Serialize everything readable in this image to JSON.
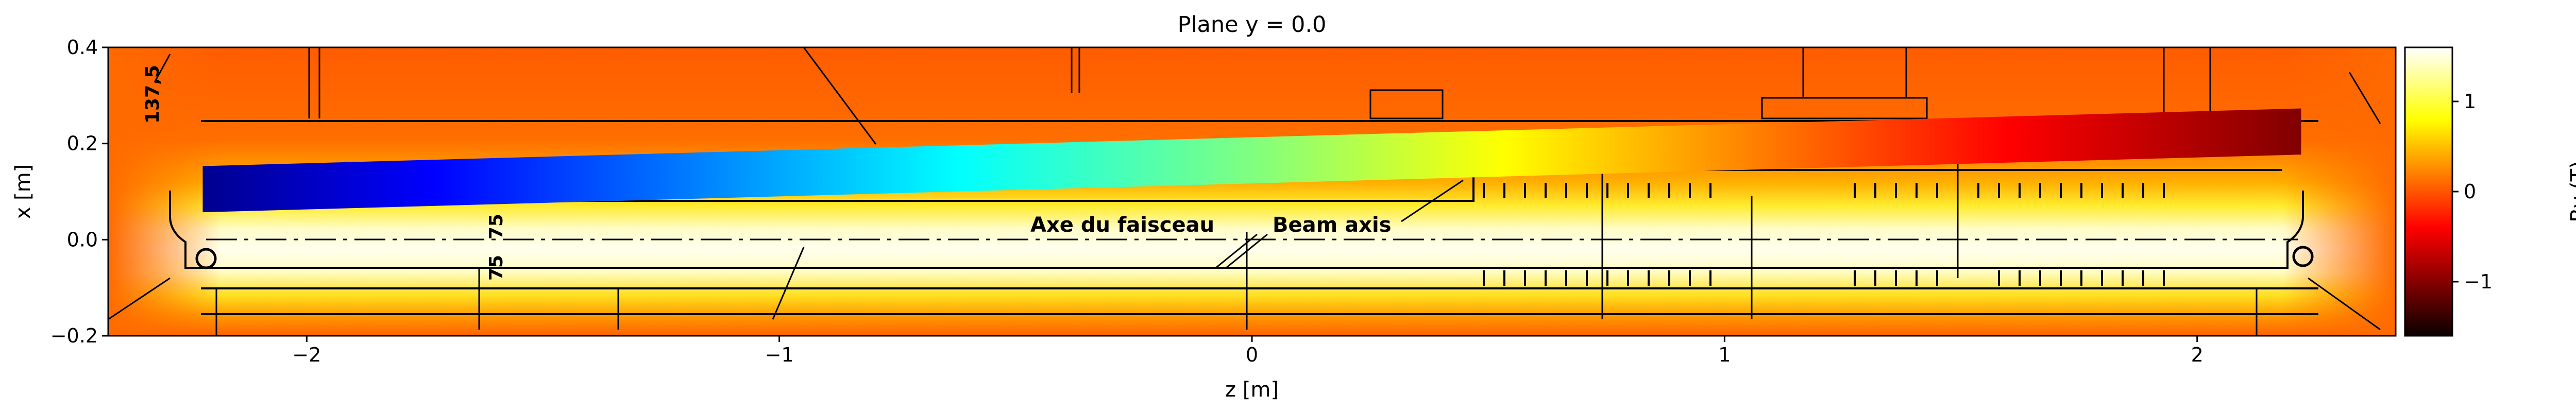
{
  "chart_data": {
    "type": "heatmap",
    "title": "Plane y = 0.0",
    "xlabel": "z [m]",
    "ylabel": "x [m]",
    "xlim": [
      -2.42,
      2.42
    ],
    "ylim": [
      -0.2,
      0.4
    ],
    "xticks": [
      {
        "value": -2,
        "label": "−2"
      },
      {
        "value": -1,
        "label": "−1"
      },
      {
        "value": 0,
        "label": "0"
      },
      {
        "value": 1,
        "label": "1"
      },
      {
        "value": 2,
        "label": "2"
      }
    ],
    "yticks": [
      {
        "value": -0.2,
        "label": "−0.2"
      },
      {
        "value": 0.0,
        "label": "0.0"
      },
      {
        "value": 0.2,
        "label": "0.2"
      },
      {
        "value": 0.4,
        "label": "0.4"
      }
    ],
    "field": {
      "quantity": "By",
      "axis_center_x": 0.0,
      "core_half_width_x": 0.09,
      "core_z_range": [
        -2.2,
        2.2
      ],
      "value_range": [
        -1.6,
        1.6
      ]
    },
    "colorbar": {
      "label": "By (T)",
      "range": [
        -1.6,
        1.6
      ],
      "colormap": "hot",
      "ticks": [
        {
          "value": -1,
          "label": "−1"
        },
        {
          "value": 0,
          "label": "0"
        },
        {
          "value": 1,
          "label": "1"
        }
      ]
    },
    "trajectory": {
      "z_start": -2.22,
      "z_end": 2.22,
      "x_center_start": 0.105,
      "x_center_end": 0.225,
      "half_width": 0.048,
      "colormap": "jet"
    },
    "drawing_labels": {
      "axe": "Axe du faisceau",
      "beam": "Beam axis",
      "dim_137": "137,5",
      "dim_75": "75",
      "dim_75b": "75"
    }
  }
}
